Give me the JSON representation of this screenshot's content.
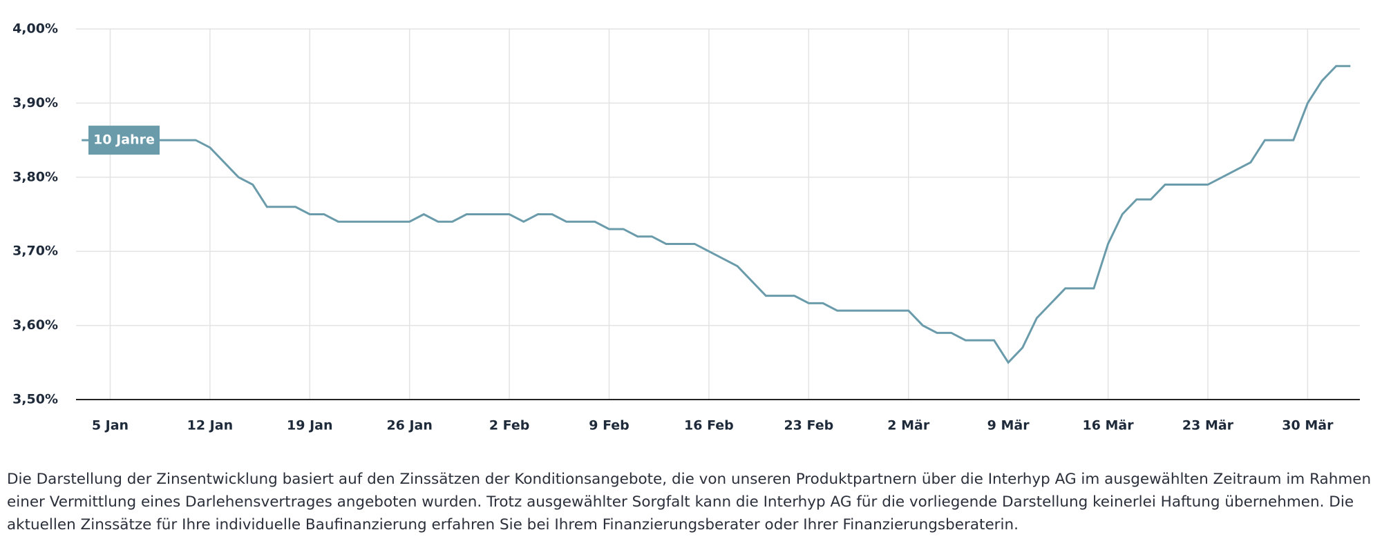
{
  "chart_data": {
    "type": "line",
    "categories": [
      null,
      null,
      "5 Jan",
      null,
      null,
      null,
      null,
      null,
      null,
      "12 Jan",
      null,
      null,
      null,
      null,
      null,
      null,
      "19 Jan",
      null,
      null,
      null,
      null,
      null,
      null,
      "26 Jan",
      null,
      null,
      null,
      null,
      null,
      null,
      "2 Feb",
      null,
      null,
      null,
      null,
      null,
      null,
      "9 Feb",
      null,
      null,
      null,
      null,
      null,
      null,
      "16 Feb",
      null,
      null,
      null,
      null,
      null,
      null,
      "23 Feb",
      null,
      null,
      null,
      null,
      null,
      null,
      "2 Mär",
      null,
      null,
      null,
      null,
      null,
      null,
      "9 Mär",
      null,
      null,
      null,
      null,
      null,
      null,
      "16 Mär",
      null,
      null,
      null,
      null,
      null,
      null,
      "23 Mär",
      null,
      null,
      null,
      null,
      null,
      null,
      "30 Mär",
      null,
      null,
      null
    ],
    "series": [
      {
        "name": "10 Jahre",
        "color": "#6a9bab",
        "values": [
          3.85,
          3.85,
          3.85,
          3.85,
          3.85,
          3.85,
          3.85,
          3.85,
          3.85,
          3.84,
          3.82,
          3.8,
          3.79,
          3.76,
          3.76,
          3.76,
          3.75,
          3.75,
          3.74,
          3.74,
          3.74,
          3.74,
          3.74,
          3.74,
          3.75,
          3.74,
          3.74,
          3.75,
          3.75,
          3.75,
          3.75,
          3.74,
          3.75,
          3.75,
          3.74,
          3.74,
          3.74,
          3.73,
          3.73,
          3.72,
          3.72,
          3.71,
          3.71,
          3.71,
          3.7,
          3.69,
          3.68,
          3.66,
          3.64,
          3.64,
          3.64,
          3.63,
          3.63,
          3.62,
          3.62,
          3.62,
          3.62,
          3.62,
          3.62,
          3.6,
          3.59,
          3.59,
          3.58,
          3.58,
          3.58,
          3.55,
          3.57,
          3.61,
          3.63,
          3.65,
          3.65,
          3.65,
          3.71,
          3.75,
          3.77,
          3.77,
          3.79,
          3.79,
          3.79,
          3.79,
          3.8,
          3.81,
          3.82,
          3.85,
          3.85,
          3.85,
          3.9,
          3.93,
          3.95,
          3.95
        ]
      }
    ],
    "ylim": [
      3.5,
      4.0
    ],
    "yticks": [
      {
        "value": 3.5,
        "label": "3,50%"
      },
      {
        "value": 3.6,
        "label": "3,60%"
      },
      {
        "value": 3.7,
        "label": "3,70%"
      },
      {
        "value": 3.8,
        "label": "3,80%"
      },
      {
        "value": 3.9,
        "label": "3,90%"
      },
      {
        "value": 4.0,
        "label": "4,00%"
      }
    ],
    "grid": true,
    "footnote": "Die Darstellung der Zinsentwicklung basiert auf den Zinssätzen der Konditionsangebote, die von unseren Produktpartnern über die Interhyp AG im ausgewählten Zeitraum im Rahmen einer Vermittlung eines Darlehensvertrages angeboten wurden. Trotz ausgewählter Sorgfalt kann die Interhyp AG für die vorliegende Darstellung keinerlei Haftung übernehmen. Die aktuellen Zinssätze für Ihre individuelle Baufinanzierung erfahren Sie bei Ihrem Finanzierungsberater oder Ihrer Finanzierungsberaterin."
  }
}
